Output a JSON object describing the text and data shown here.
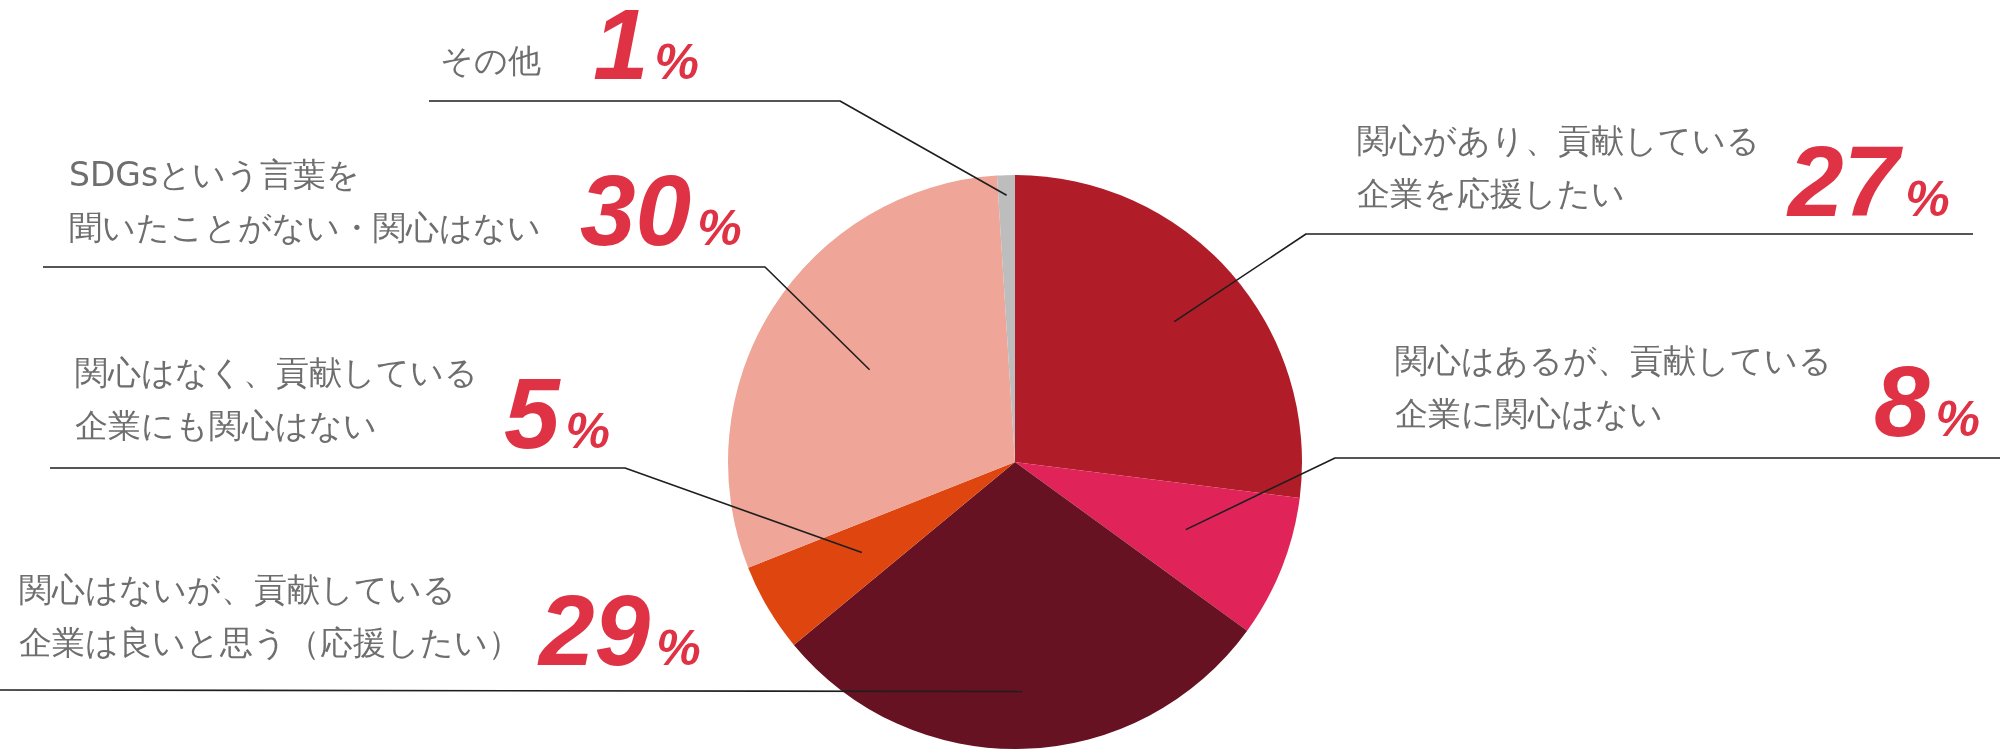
{
  "chart_data": {
    "type": "pie",
    "categories": [
      "関心があり、貢献している企業を応援したい",
      "関心はあるが、貢献している企業に関心はない",
      "関心はないが、貢献している企業は良いと思う（応援したい）",
      "関心はなく、貢献している企業にも関心はない",
      "SDGsという言葉を聞いたことがない・関心はない",
      "その他"
    ],
    "values": [
      27,
      8,
      29,
      5,
      30,
      1
    ],
    "value_labels": [
      "27%",
      "8%",
      "29%",
      "5%",
      "30%",
      "1%"
    ],
    "colors": [
      "#b01c28",
      "#e0245a",
      "#661222",
      "#df460f",
      "#efa597",
      "#bdbdbd"
    ]
  }
}
